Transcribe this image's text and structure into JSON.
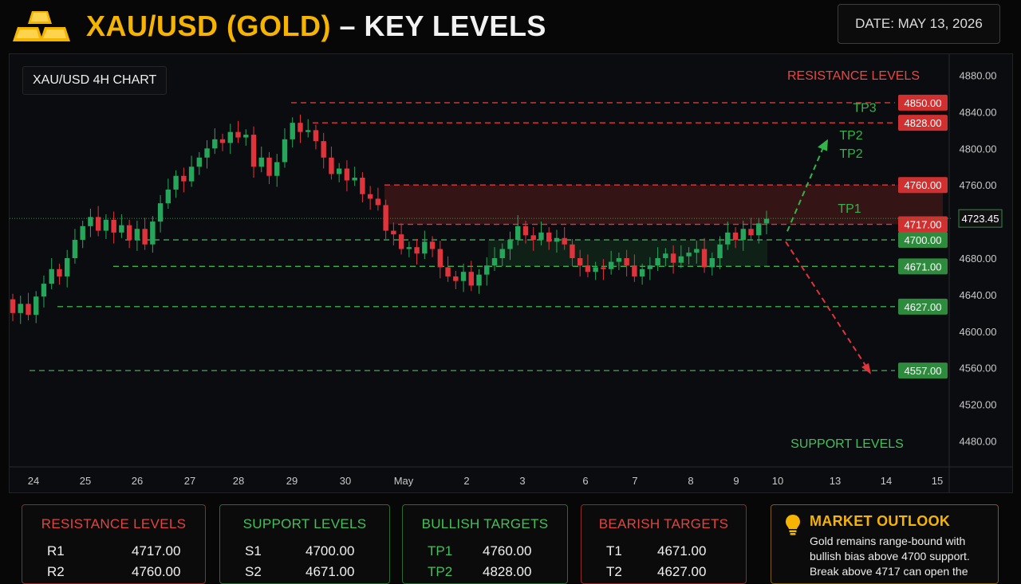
{
  "header": {
    "title_gold": "XAU/USD (GOLD)",
    "title_white": "– KEY LEVELS",
    "date": "DATE: MAY 13, 2026",
    "logo_icon": "gold-bars-icon"
  },
  "chart_data": {
    "type": "candlestick",
    "label": "XAU/USD   4H CHART",
    "ylim": [
      4460,
      4900
    ],
    "yticks": [
      4480,
      4520,
      4560,
      4600,
      4640,
      4680,
      4720,
      4760,
      4800,
      4840,
      4880
    ],
    "x_tick_labels": [
      "24",
      "25",
      "26",
      "27",
      "28",
      "29",
      "30",
      "May",
      "2",
      "3",
      "6",
      "7",
      "8",
      "9",
      "10",
      "13",
      "14",
      "15"
    ],
    "current_price": 4723.45,
    "resistance_title": "RESISTANCE LEVELS",
    "support_title": "SUPPORT LEVELS",
    "resistance_levels": [
      4850.0,
      4828.0,
      4760.0,
      4717.0
    ],
    "support_levels": [
      4700.0,
      4671.0,
      4627.0,
      4557.0
    ],
    "resistance_zone": [
      4717,
      4760
    ],
    "support_zone": [
      4671,
      4700
    ],
    "target_labels": [
      {
        "text": "TP3",
        "price": 4845
      },
      {
        "text": "TP2",
        "price": 4815
      },
      {
        "text": "TP2",
        "price": 4795
      },
      {
        "text": "TP1",
        "price": 4735
      }
    ],
    "bullish_path": {
      "from_price": 4705,
      "to_price": 4805
    },
    "bearish_path": {
      "from_price": 4698,
      "to_price": 4560
    },
    "colors": {
      "up": "#26a65b",
      "down": "#e0343d",
      "resistance": "#d93b3b",
      "support": "#3fae4f",
      "target": "#33b34a"
    }
  },
  "panels": {
    "resistance": {
      "title": "RESISTANCE LEVELS",
      "rows": [
        {
          "k": "R1",
          "v": "4717.00"
        },
        {
          "k": "R2",
          "v": "4760.00"
        }
      ]
    },
    "support": {
      "title": "SUPPORT LEVELS",
      "rows": [
        {
          "k": "S1",
          "v": "4700.00"
        },
        {
          "k": "S2",
          "v": "4671.00"
        }
      ]
    },
    "bullish": {
      "title": "BULLISH TARGETS",
      "rows": [
        {
          "k": "TP1",
          "v": "4760.00"
        },
        {
          "k": "TP2",
          "v": "4828.00"
        }
      ]
    },
    "bearish": {
      "title": "BEARISH TARGETS",
      "rows": [
        {
          "k": "T1",
          "v": "4671.00"
        },
        {
          "k": "T2",
          "v": "4627.00"
        }
      ]
    },
    "outlook": {
      "title": "MARKET OUTLOOK",
      "icon": "lightbulb-icon",
      "text": "Gold remains range-bound with bullish bias above 4700 support. Break above 4717 can open the"
    }
  },
  "colors": {
    "gold": "#f5b400",
    "resistance_panel": "#8e2a2a",
    "support_panel": "#2b6a34",
    "outlook_panel": "#7a5c12"
  }
}
